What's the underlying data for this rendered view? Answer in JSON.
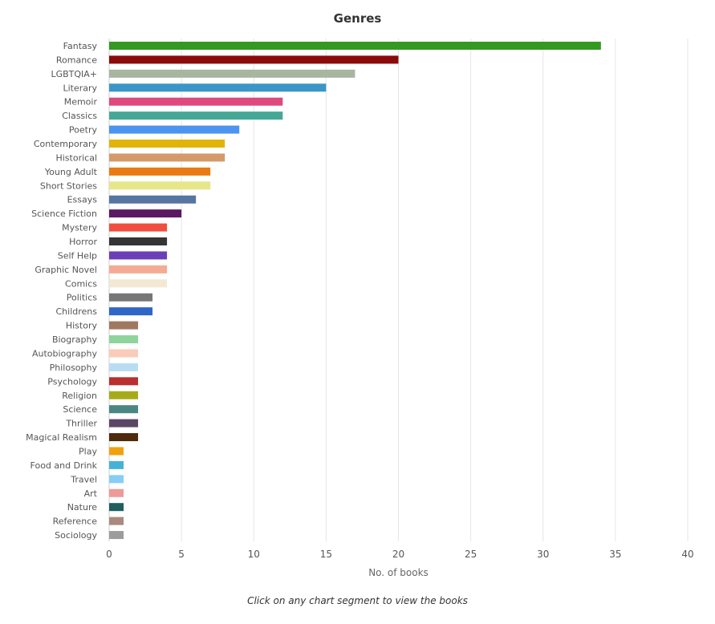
{
  "chart_data": {
    "type": "bar",
    "orientation": "horizontal",
    "title": "Genres",
    "xlabel": "No. of books",
    "ylabel": "",
    "xlim": [
      0,
      40
    ],
    "xticks": [
      0,
      5,
      10,
      15,
      20,
      25,
      30,
      35,
      40
    ],
    "grid": true,
    "categories": [
      "Fantasy",
      "Romance",
      "LGBTQIA+",
      "Literary",
      "Memoir",
      "Classics",
      "Poetry",
      "Contemporary",
      "Historical",
      "Young Adult",
      "Short Stories",
      "Essays",
      "Science Fiction",
      "Mystery",
      "Horror",
      "Self Help",
      "Graphic Novel",
      "Comics",
      "Politics",
      "Childrens",
      "History",
      "Biography",
      "Autobiography",
      "Philosophy",
      "Psychology",
      "Religion",
      "Science",
      "Thriller",
      "Magical Realism",
      "Play",
      "Food and Drink",
      "Travel",
      "Art",
      "Nature",
      "Reference",
      "Sociology"
    ],
    "values": [
      34,
      20,
      17,
      15,
      12,
      12,
      9,
      8,
      8,
      7,
      7,
      6,
      5,
      4,
      4,
      4,
      4,
      4,
      3,
      3,
      2,
      2,
      2,
      2,
      2,
      2,
      2,
      2,
      2,
      1,
      1,
      1,
      1,
      1,
      1,
      1
    ],
    "colors": [
      "#339922",
      "#8b0a0a",
      "#a8b5a0",
      "#3a96c8",
      "#de4a7d",
      "#45a896",
      "#4c94f0",
      "#e1b40a",
      "#d49a6a",
      "#ea7a12",
      "#e6e68a",
      "#5675a0",
      "#5a1862",
      "#f04e3e",
      "#353535",
      "#6a3eb8",
      "#f5aa94",
      "#f2e8d4",
      "#777777",
      "#2f66c8",
      "#a07860",
      "#8ed49c",
      "#f8ccb8",
      "#b9dcf4",
      "#ba2f2f",
      "#a8aa1a",
      "#4a8684",
      "#5c4666",
      "#4e2a0a",
      "#f0a20e",
      "#46b2d8",
      "#86cef6",
      "#ec9a9a",
      "#205e62",
      "#a88a7e",
      "#9c9c9c"
    ],
    "caption": "Click on any chart segment to view the books"
  }
}
